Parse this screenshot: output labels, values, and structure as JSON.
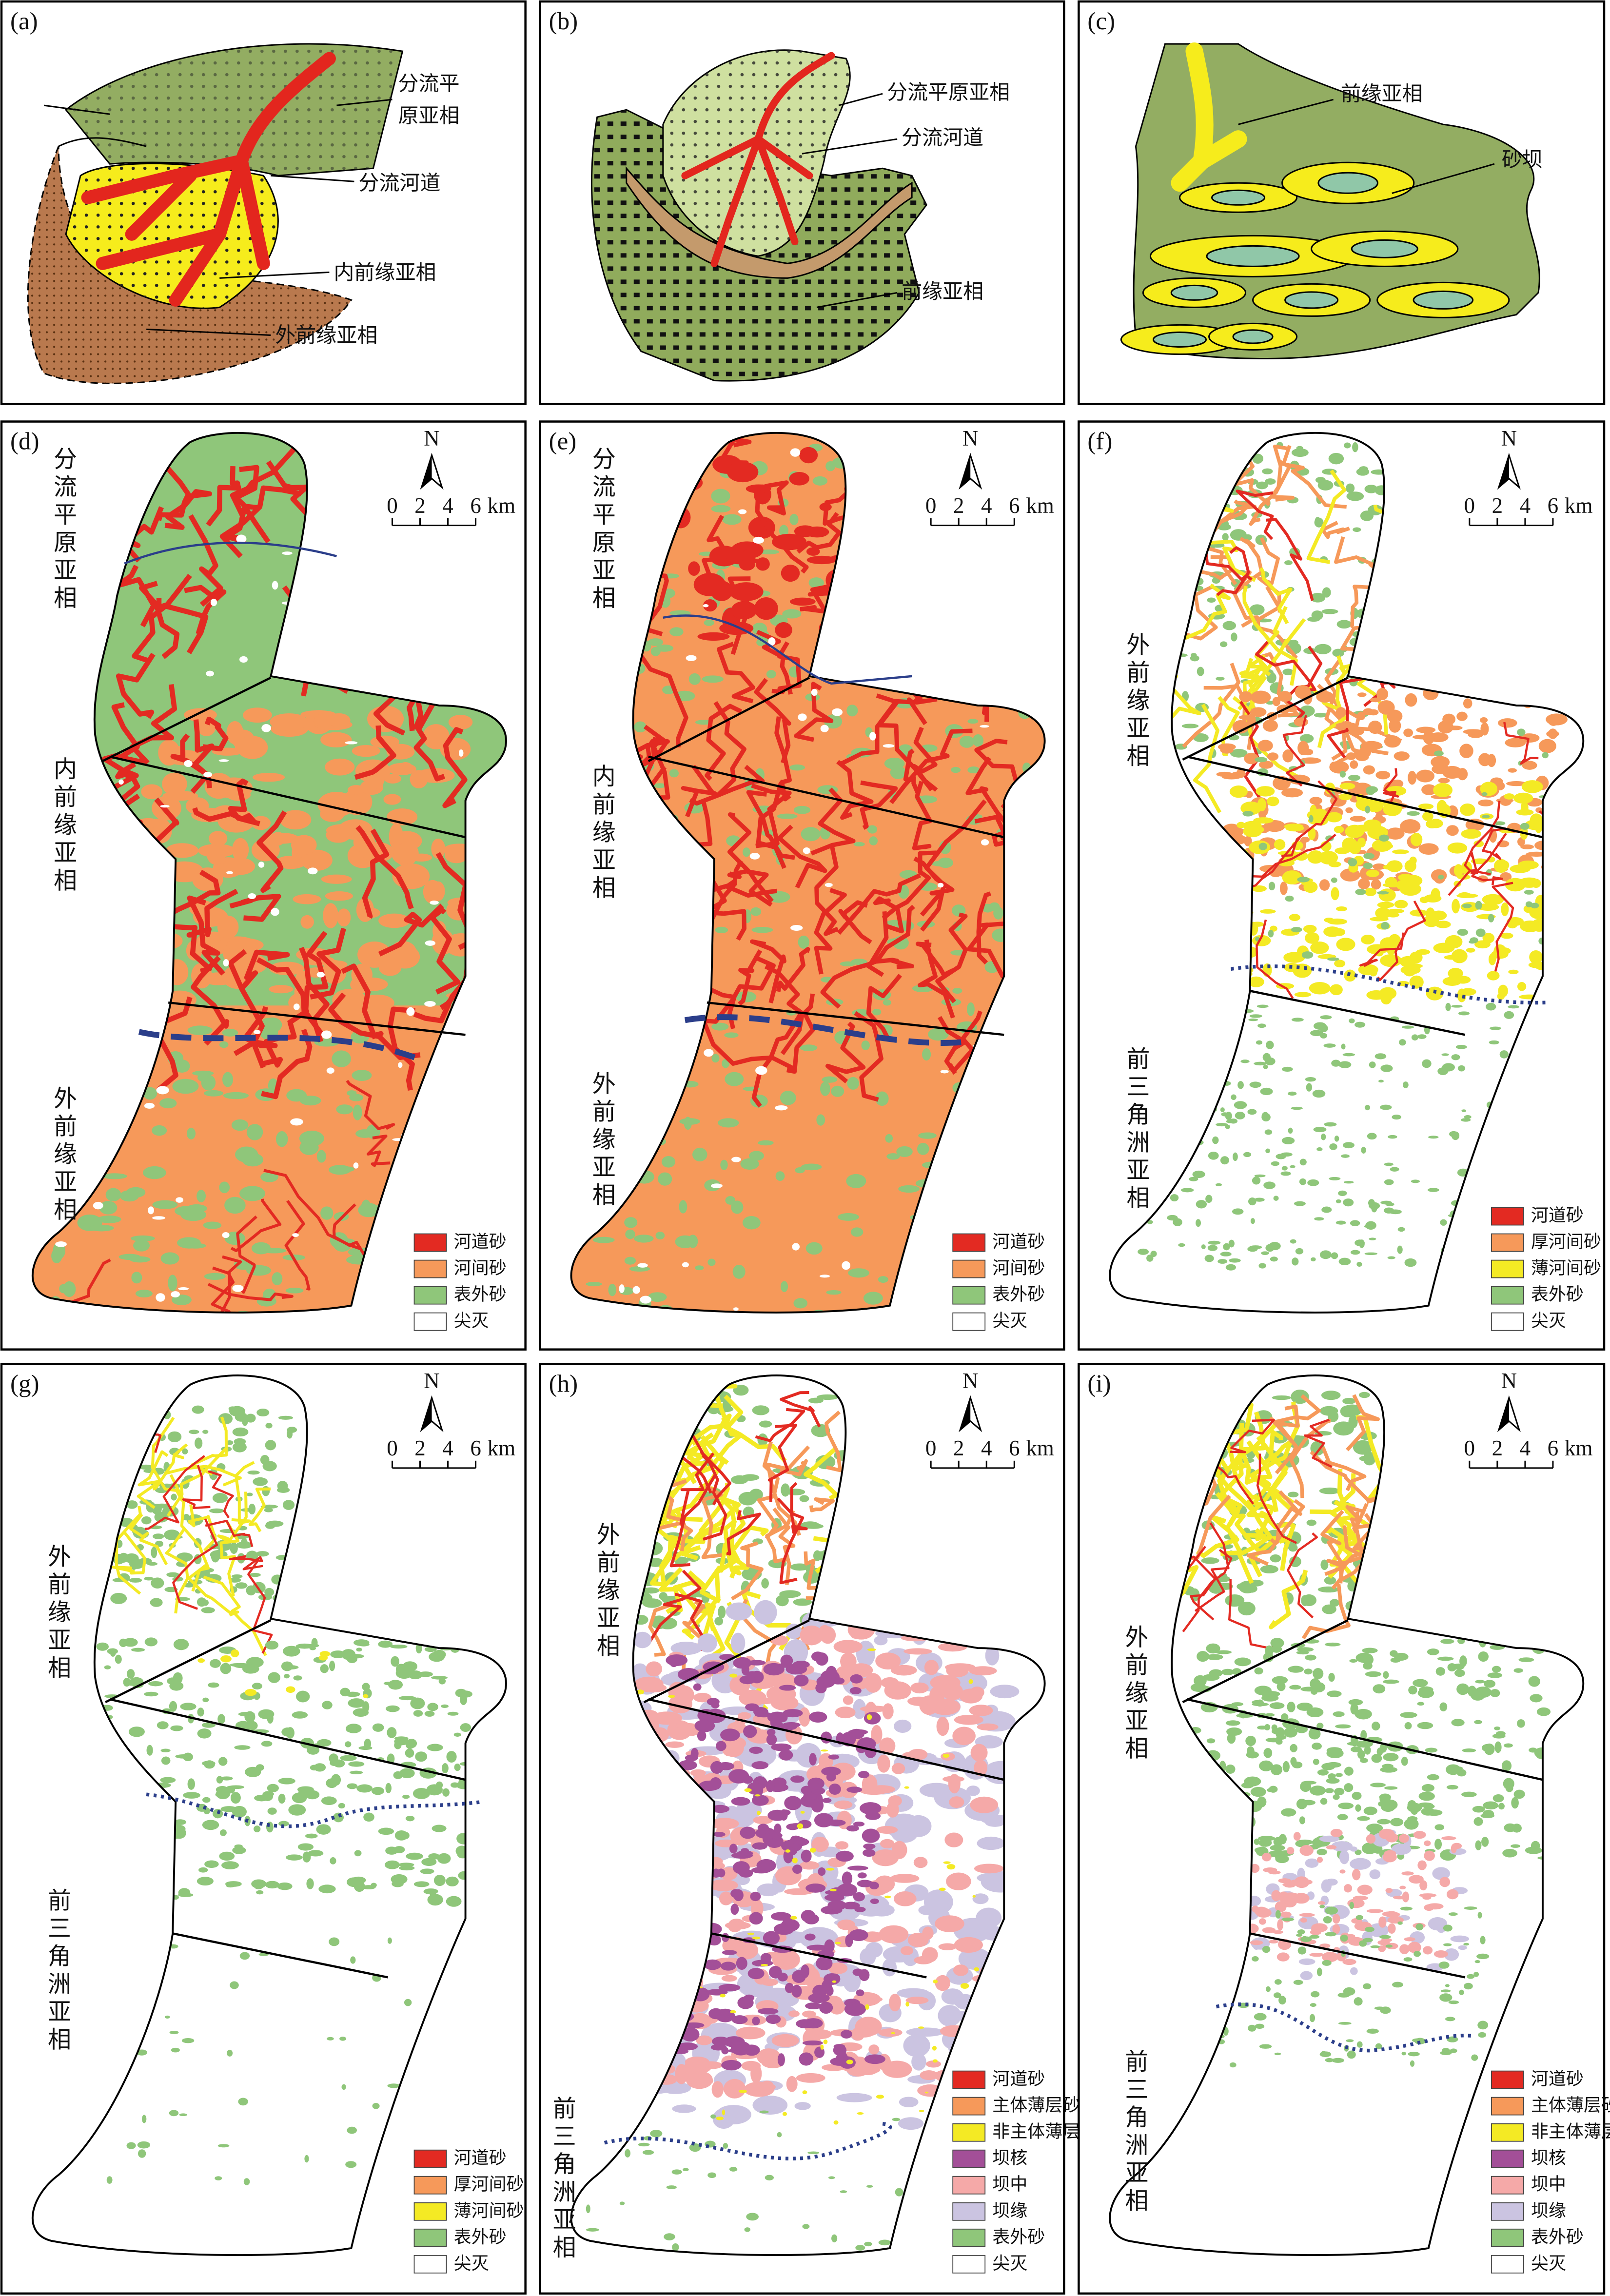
{
  "panels": [
    {
      "label": "(a)",
      "annotations": [
        {
          "lines": [
            "分流平",
            "原亚相"
          ]
        },
        {
          "lines": [
            "分流河道"
          ]
        },
        {
          "lines": [
            "内前缘亚相"
          ]
        },
        {
          "lines": [
            "外前缘亚相"
          ]
        }
      ]
    },
    {
      "label": "(b)",
      "annotations": [
        {
          "lines": [
            "分流平原亚相"
          ]
        },
        {
          "lines": [
            "分流河道"
          ]
        },
        {
          "lines": [
            "前缘亚相"
          ]
        }
      ]
    },
    {
      "label": "(c)",
      "annotations": [
        {
          "lines": [
            "前缘亚相"
          ]
        },
        {
          "lines": [
            "砂坝"
          ]
        }
      ]
    },
    {
      "label": "(d)",
      "side_labels": [
        "分流平原亚相",
        "内前缘亚相",
        "外前缘亚相"
      ],
      "scale": {
        "north": "N",
        "ticks": [
          0,
          2,
          4,
          6
        ],
        "unit": "km"
      },
      "legend": [
        {
          "label": "河道砂",
          "color": "#e32a22"
        },
        {
          "label": "河间砂",
          "color": "#f6995a"
        },
        {
          "label": "表外砂",
          "color": "#8fc67a"
        },
        {
          "label": "尖灭",
          "color": "#ffffff"
        }
      ]
    },
    {
      "label": "(e)",
      "side_labels": [
        "分流平原亚相",
        "内前缘亚相",
        "外前缘亚相"
      ],
      "scale": {
        "north": "N",
        "ticks": [
          0,
          2,
          4,
          6
        ],
        "unit": "km"
      },
      "legend": [
        {
          "label": "河道砂",
          "color": "#e32a22"
        },
        {
          "label": "河间砂",
          "color": "#f6995a"
        },
        {
          "label": "表外砂",
          "color": "#8fc67a"
        },
        {
          "label": "尖灭",
          "color": "#ffffff"
        }
      ]
    },
    {
      "label": "(f)",
      "side_labels": [
        "外前缘亚相",
        "前三角洲亚相"
      ],
      "scale": {
        "north": "N",
        "ticks": [
          0,
          2,
          4,
          6
        ],
        "unit": "km"
      },
      "legend": [
        {
          "label": "河道砂",
          "color": "#e32a22"
        },
        {
          "label": "厚河间砂",
          "color": "#f6995a"
        },
        {
          "label": "薄河间砂",
          "color": "#f4ea24"
        },
        {
          "label": "表外砂",
          "color": "#8fc67a"
        },
        {
          "label": "尖灭",
          "color": "#ffffff"
        }
      ]
    },
    {
      "label": "(g)",
      "side_labels": [
        "外前缘亚相",
        "前三角洲亚相"
      ],
      "scale": {
        "north": "N",
        "ticks": [
          0,
          2,
          4,
          6
        ],
        "unit": "km"
      },
      "legend": [
        {
          "label": "河道砂",
          "color": "#e32a22"
        },
        {
          "label": "厚河间砂",
          "color": "#f6995a"
        },
        {
          "label": "薄河间砂",
          "color": "#f4ea24"
        },
        {
          "label": "表外砂",
          "color": "#8fc67a"
        },
        {
          "label": "尖灭",
          "color": "#ffffff"
        }
      ]
    },
    {
      "label": "(h)",
      "side_labels": [
        "外前缘亚相",
        "前三角洲亚相"
      ],
      "scale": {
        "north": "N",
        "ticks": [
          0,
          2,
          4,
          6
        ],
        "unit": "km"
      },
      "legend": [
        {
          "label": "河道砂",
          "color": "#e32a22"
        },
        {
          "label": "主体薄层砂",
          "color": "#f6995a"
        },
        {
          "label": "非主体薄层砂",
          "color": "#f4ea24"
        },
        {
          "label": "坝核",
          "color": "#a34f98"
        },
        {
          "label": "坝中",
          "color": "#f5a9a8"
        },
        {
          "label": "坝缘",
          "color": "#cbc4e1"
        },
        {
          "label": "表外砂",
          "color": "#8fc67a"
        },
        {
          "label": "尖灭",
          "color": "#ffffff"
        }
      ]
    },
    {
      "label": "(i)",
      "side_labels": [
        "外前缘亚相",
        "前三角洲亚相"
      ],
      "scale": {
        "north": "N",
        "ticks": [
          0,
          2,
          4,
          6
        ],
        "unit": "km"
      },
      "legend": [
        {
          "label": "河道砂",
          "color": "#e32a22"
        },
        {
          "label": "主体薄层砂",
          "color": "#f6995a"
        },
        {
          "label": "非主体薄层砂",
          "color": "#f4ea24"
        },
        {
          "label": "坝核",
          "color": "#a34f98"
        },
        {
          "label": "坝中",
          "color": "#f5a9a8"
        },
        {
          "label": "坝缘",
          "color": "#cbc4e1"
        },
        {
          "label": "表外砂",
          "color": "#8fc67a"
        },
        {
          "label": "尖灭",
          "color": "#ffffff"
        }
      ]
    }
  ]
}
